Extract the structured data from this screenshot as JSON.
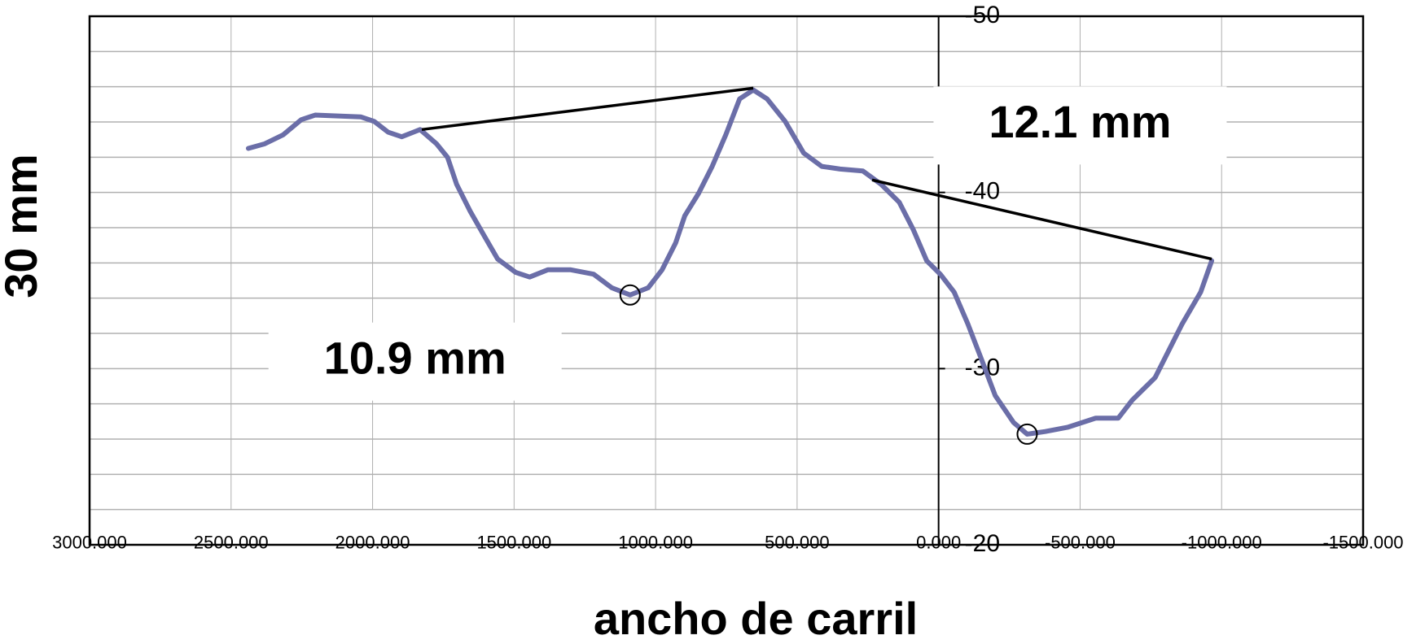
{
  "chart_data": {
    "type": "line",
    "xlabel": "ancho de carril",
    "ylabel": "30 mm",
    "xlim": [
      3000,
      -1500
    ],
    "ylim": [
      -20,
      -50
    ],
    "xticks": [
      {
        "value": 3000,
        "label": "3000.000"
      },
      {
        "value": 2500,
        "label": "2500.000"
      },
      {
        "value": 2000,
        "label": "2000.000"
      },
      {
        "value": 1500,
        "label": "1500.000"
      },
      {
        "value": 1000,
        "label": "1000.000"
      },
      {
        "value": 500,
        "label": "500.000"
      },
      {
        "value": 0,
        "label": "0.000"
      },
      {
        "value": -500,
        "label": "-500.000"
      },
      {
        "value": -1000,
        "label": "-1000.000"
      },
      {
        "value": -1500,
        "label": "-1500.000"
      }
    ],
    "yticks": [
      -50,
      -40,
      -30,
      -20
    ],
    "ygrid_lines": [
      -50,
      -48,
      -46,
      -44,
      -42,
      -40,
      -38,
      -36,
      -34,
      -32,
      -30,
      -28,
      -26,
      -24,
      -22
    ],
    "grid": true,
    "series": [
      {
        "color": "#6b6ea8",
        "x": [
          2439,
          2381,
          2316,
          2252,
          2203,
          2123,
          2042,
          1994,
          1945,
          1897,
          1832,
          1774,
          1735,
          1703,
          1655,
          1606,
          1558,
          1494,
          1445,
          1381,
          1300,
          1219,
          1155,
          1090,
          1026,
          977,
          929,
          897,
          848,
          800,
          752,
          703,
          655,
          606,
          542,
          477,
          413,
          348,
          268,
          203,
          139,
          90,
          42,
          -6,
          -55,
          -103,
          -152,
          -200,
          -265,
          -313,
          -377,
          -458,
          -555,
          -635,
          -684,
          -765,
          -813,
          -861,
          -926,
          -965
        ],
        "values": [
          -42.5,
          -42.76,
          -43.27,
          -44.13,
          -44.39,
          -44.34,
          -44.29,
          -44.03,
          -43.42,
          -43.16,
          -43.57,
          -42.76,
          -41.99,
          -40.46,
          -38.93,
          -37.55,
          -36.22,
          -35.46,
          -35.2,
          -35.61,
          -35.61,
          -35.36,
          -34.59,
          -34.18,
          -34.59,
          -35.61,
          -37.14,
          -38.67,
          -39.95,
          -41.48,
          -43.27,
          -45.31,
          -45.82,
          -45.31,
          -44.03,
          -42.24,
          -41.48,
          -41.33,
          -41.22,
          -40.46,
          -39.44,
          -37.91,
          -36.12,
          -35.36,
          -34.34,
          -32.55,
          -30.51,
          -28.47,
          -26.94,
          -26.28,
          -26.43,
          -26.68,
          -27.19,
          -27.19,
          -28.21,
          -29.49,
          -31.02,
          -32.55,
          -34.34,
          -36.12
        ]
      }
    ],
    "reference_lines": [
      {
        "x": [
          1826,
          655
        ],
        "y": [
          -43.57,
          -45.92
        ]
      },
      {
        "x": [
          235,
          -965
        ],
        "y": [
          -40.71,
          -36.22
        ]
      }
    ],
    "markers": {
      "x": [
        1090,
        -313
      ],
      "y": [
        -34.18,
        -26.28
      ]
    },
    "annotations": [
      {
        "text": "12.1 mm",
        "x": -500,
        "y": -43.8
      },
      {
        "text": "10.9 mm",
        "x": 1850,
        "y": -30.4
      }
    ]
  }
}
